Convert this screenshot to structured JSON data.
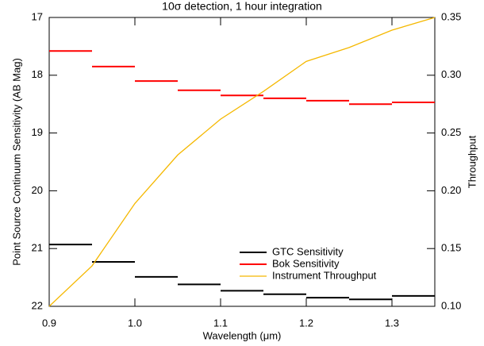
{
  "chart_data": {
    "type": "line",
    "title": "10σ detection, 1 hour integration",
    "xlabel": "Wavelength (μm)",
    "ylabel": "Point Source Continuum Sensitivity (AB Mag)",
    "y2label": "Throughput",
    "xlim": [
      0.9,
      1.35
    ],
    "xticks": [
      0.9,
      {
        "value": 1,
        "label": "1.0"
      },
      1.1,
      1.2,
      1.3
    ],
    "ylim": [
      22,
      17
    ],
    "yticks": [
      17,
      18,
      19,
      20,
      21,
      22
    ],
    "y2lim": [
      0.1,
      0.35
    ],
    "y2ticks": [
      {
        "value": 0.1,
        "label": "0.10"
      },
      0.15,
      {
        "value": 0.2,
        "label": "0.20"
      },
      0.25,
      {
        "value": 0.3,
        "label": "0.30"
      },
      0.35
    ],
    "legend": "lower right",
    "series": [
      {
        "name": "GTC Sensitivity",
        "color": "#000000",
        "drawstyle": "steps",
        "bins": [
          0.9,
          0.95,
          1.0,
          1.05,
          1.1,
          1.15,
          1.2,
          1.25,
          1.3,
          1.35
        ],
        "values": [
          20.93,
          21.23,
          21.49,
          21.62,
          21.73,
          21.79,
          21.85,
          21.88,
          21.82
        ]
      },
      {
        "name": "Bok Sensitivity",
        "color": "#ff0000",
        "drawstyle": "steps",
        "bins": [
          0.9,
          0.95,
          1.0,
          1.05,
          1.1,
          1.15,
          1.2,
          1.25,
          1.3,
          1.35
        ],
        "values": [
          17.58,
          17.85,
          18.1,
          18.26,
          18.35,
          18.4,
          18.44,
          18.5,
          18.47
        ]
      },
      {
        "name": "Instrument Throughput",
        "color": "#f5b800",
        "axis": "y2",
        "x": [
          0.9,
          0.95,
          1.0,
          1.05,
          1.1,
          1.15,
          1.2,
          1.25,
          1.3,
          1.35
        ],
        "values": [
          0.1,
          0.135,
          0.189,
          0.231,
          0.262,
          0.286,
          0.312,
          0.324,
          0.339,
          0.35
        ]
      }
    ]
  }
}
